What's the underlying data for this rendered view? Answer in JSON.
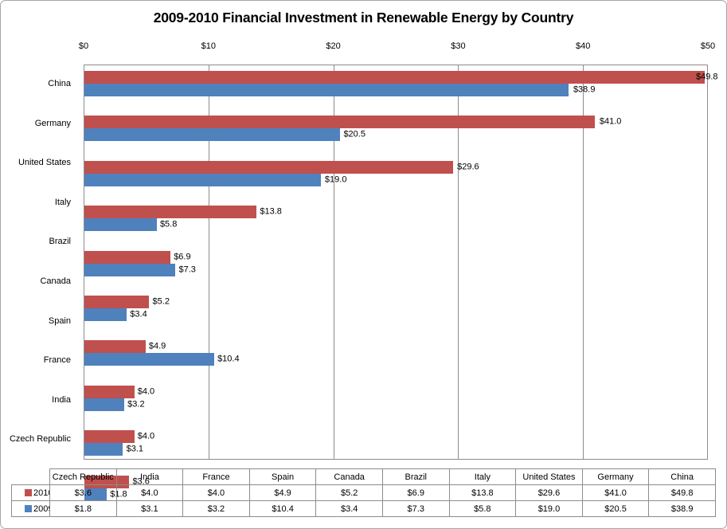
{
  "chart_data": {
    "type": "bar",
    "orientation": "horizontal",
    "title": "2009-2010 Financial Investment in Renewable Energy by Country",
    "categories": [
      "China",
      "Germany",
      "United States",
      "Italy",
      "Brazil",
      "Canada",
      "Spain",
      "France",
      "India",
      "Czech Republic"
    ],
    "series": [
      {
        "name": "2010",
        "color": "#C0504D",
        "values": [
          49.8,
          41.0,
          29.6,
          13.8,
          6.9,
          5.2,
          4.9,
          4.0,
          4.0,
          3.6
        ]
      },
      {
        "name": "2009",
        "color": "#4F81BD",
        "values": [
          38.9,
          20.5,
          19.0,
          5.8,
          7.3,
          3.4,
          10.4,
          3.2,
          3.1,
          1.8
        ]
      }
    ],
    "xlim": [
      0,
      50
    ],
    "x_tick_labels": [
      "$0",
      "$10",
      "$20",
      "$30",
      "$40",
      "$50"
    ],
    "value_prefix": "$",
    "value_decimals": 1,
    "data_labels": "outside-end",
    "gridlines": "vertical-major",
    "legend_position": "bottom-data-table",
    "xlabel": "",
    "ylabel": ""
  },
  "data_table": {
    "columns": [
      "Czech Republic",
      "India",
      "France",
      "Spain",
      "Canada",
      "Brazil",
      "Italy",
      "United States",
      "Germany",
      "China"
    ],
    "rows": [
      {
        "label": "2010",
        "swatch_color": "#C0504D",
        "values": [
          "$3.6",
          "$4.0",
          "$4.0",
          "$4.9",
          "$5.2",
          "$6.9",
          "$13.8",
          "$29.6",
          "$41.0",
          "$49.8"
        ]
      },
      {
        "label": "2009",
        "swatch_color": "#4F81BD",
        "values": [
          "$1.8",
          "$3.1",
          "$3.2",
          "$10.4",
          "$3.4",
          "$7.3",
          "$5.8",
          "$19.0",
          "$20.5",
          "$38.9"
        ]
      }
    ]
  },
  "colors": {
    "series_2010": "#C0504D",
    "series_2009": "#4F81BD",
    "gridline": "#8C8C8C",
    "plot_border": "#8C8C8C",
    "table_border": "#8C8C8C",
    "outer_border": "#A6A6A6",
    "text": "#000000",
    "background": "#FFFFFF"
  }
}
